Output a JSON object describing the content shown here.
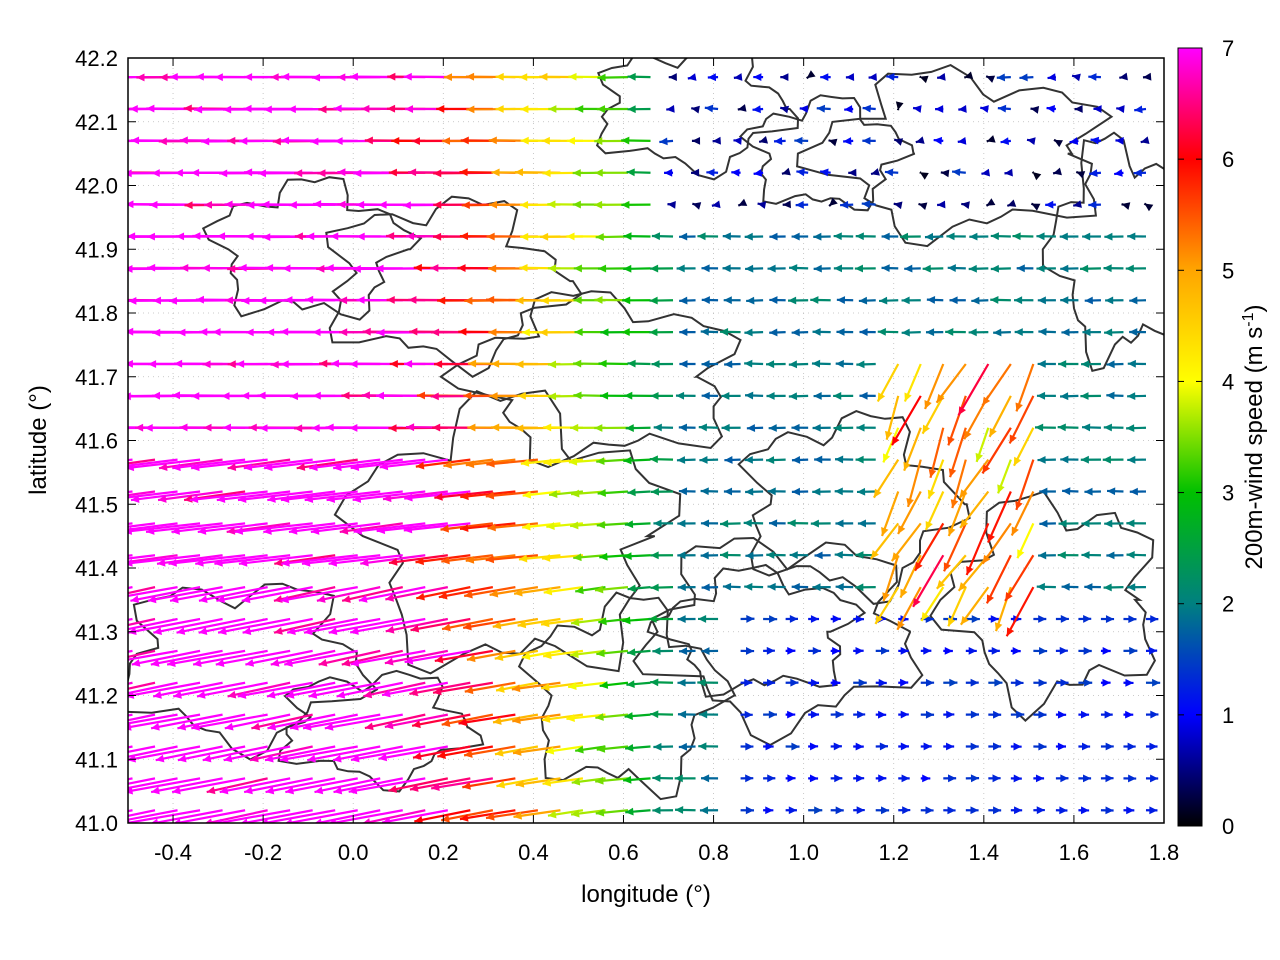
{
  "chart_data": {
    "type": "vector-field",
    "xlabel": "longitude (°)",
    "ylabel": "latitude (°)",
    "xlim": [
      -0.5,
      1.8
    ],
    "ylim": [
      41.0,
      42.2
    ],
    "xticks": [
      "-0.4",
      "-0.2",
      "0.0",
      "0.2",
      "0.4",
      "0.6",
      "0.8",
      "1.0",
      "1.2",
      "1.4",
      "1.6",
      "1.8"
    ],
    "yticks": [
      "41.0",
      "41.1",
      "41.2",
      "41.3",
      "41.4",
      "41.5",
      "41.6",
      "41.7",
      "41.8",
      "41.9",
      "42.0",
      "42.1",
      "42.2"
    ],
    "grid": true,
    "colorbar": {
      "label_main": "200m-wind speed (m s",
      "label_sup": "-1",
      "label_end": ")",
      "range": [
        0,
        7
      ],
      "ticks": [
        "0",
        "1",
        "2",
        "3",
        "4",
        "5",
        "6",
        "7"
      ],
      "colors": [
        "#000000",
        "#0000ff",
        "#00c000",
        "#ffff00",
        "#ffa500",
        "#ff0000",
        "#ff00ff"
      ]
    }
  }
}
